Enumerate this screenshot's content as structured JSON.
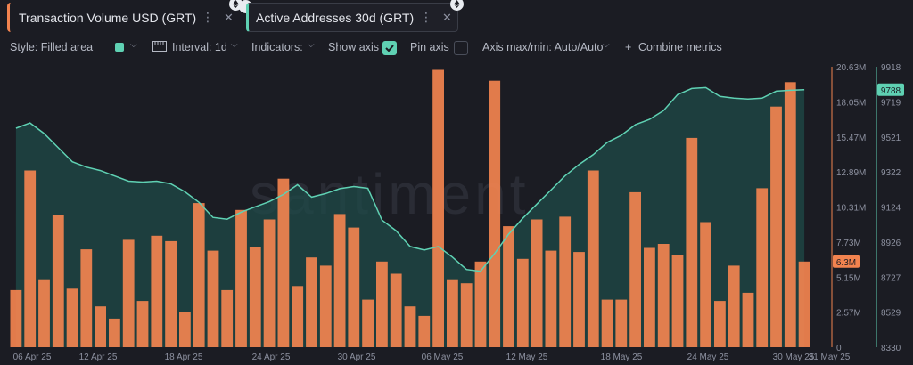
{
  "tabs": [
    {
      "label": "Transaction Volume USD (GRT)",
      "color": "#f2834f"
    },
    {
      "label": "Active Addresses 30d (GRT)",
      "color": "#5fd1b3"
    }
  ],
  "toolbar": {
    "style_label": "Style: Filled area",
    "interval_label": "Interval: 1d",
    "indicators_label": "Indicators:",
    "show_axis_label": "Show axis",
    "show_axis_checked": true,
    "pin_axis_label": "Pin axis",
    "pin_axis_checked": false,
    "axis_maxmin_label": "Axis max/min: Auto/Auto",
    "combine_label": "Combine metrics"
  },
  "watermark": "santiment",
  "chart_data": {
    "type": "bar+area",
    "x_ticks": [
      "06 Apr 25",
      "12 Apr 25",
      "18 Apr 25",
      "24 Apr 25",
      "30 Apr 25",
      "06 May 25",
      "12 May 25",
      "18 May 25",
      "24 May 25",
      "30 May 25",
      "31 May 25"
    ],
    "left_axis": {
      "ticks": [
        "20.63M",
        "18.05M",
        "15.47M",
        "12.89M",
        "10.31M",
        "7.73M",
        "5.15M",
        "2.57M",
        "0"
      ],
      "max": 20.63,
      "min": 0,
      "current_label": "6.3M"
    },
    "right_axis": {
      "ticks": [
        "9918",
        "9719",
        "9521",
        "9322",
        "9124",
        "8926",
        "8727",
        "8529",
        "8330"
      ],
      "max": 9918,
      "min": 8330,
      "current_label": "9788"
    },
    "series": [
      {
        "name": "Transaction Volume USD (GRT)",
        "color": "#f2834f",
        "type": "bar",
        "values": [
          4.2,
          13.0,
          5.0,
          9.7,
          4.3,
          7.2,
          3.0,
          2.1,
          7.9,
          3.4,
          8.2,
          7.8,
          2.6,
          10.6,
          7.1,
          4.2,
          10.1,
          7.4,
          9.4,
          12.4,
          4.5,
          6.6,
          6.0,
          9.8,
          8.8,
          3.5,
          6.3,
          5.4,
          3.0,
          2.3,
          20.4,
          5.0,
          4.7,
          6.3,
          19.6,
          8.9,
          6.5,
          9.4,
          7.1,
          9.6,
          7.0,
          13.0,
          3.5,
          3.5,
          11.4,
          7.3,
          7.6,
          6.8,
          15.4,
          9.2,
          3.4,
          6.0,
          4.0,
          11.7,
          17.7,
          19.5,
          6.3
        ]
      },
      {
        "name": "Active Addresses 30d (GRT)",
        "color": "#5fd1b3",
        "type": "area",
        "values": [
          9570,
          9600,
          9540,
          9460,
          9380,
          9350,
          9330,
          9300,
          9270,
          9265,
          9270,
          9255,
          9210,
          9150,
          9065,
          9055,
          9095,
          9125,
          9155,
          9195,
          9250,
          9180,
          9200,
          9228,
          9240,
          9230,
          9050,
          8990,
          8900,
          8880,
          8900,
          8840,
          8770,
          8760,
          8860,
          8970,
          9060,
          9140,
          9220,
          9300,
          9365,
          9420,
          9490,
          9530,
          9590,
          9620,
          9670,
          9760,
          9795,
          9800,
          9750,
          9740,
          9735,
          9740,
          9780,
          9785,
          9788
        ]
      }
    ]
  }
}
